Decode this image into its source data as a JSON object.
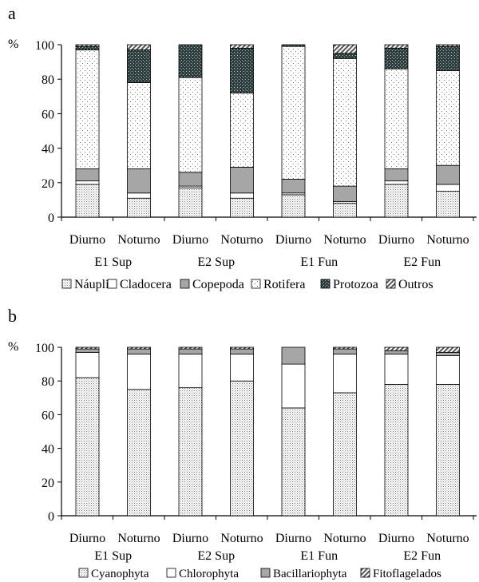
{
  "chart_data": [
    {
      "panel_label": "a",
      "type": "bar",
      "stacked": true,
      "ylabel": "%",
      "ylim": [
        0,
        100
      ],
      "yticks": [
        0,
        20,
        40,
        60,
        80,
        100
      ],
      "tick_labels": [
        "0",
        "20",
        "40",
        "60",
        "80",
        "100"
      ],
      "categories": [
        "Diurno",
        "Noturno",
        "Diurno",
        "Noturno",
        "Diurno",
        "Noturno",
        "Diurno",
        "Noturno"
      ],
      "groups": [
        "E1 Sup",
        "E2 Sup",
        "E1 Fun",
        "E2 Fun"
      ],
      "legend_position": "bottom",
      "series": [
        {
          "name": "Náuplio",
          "pattern": "dots-fine",
          "values": [
            19,
            11,
            17,
            11,
            13,
            8,
            19,
            15
          ]
        },
        {
          "name": "Cladocera",
          "pattern": "white",
          "values": [
            2,
            3,
            1,
            3,
            1,
            1,
            2,
            4
          ]
        },
        {
          "name": "Copepoda",
          "pattern": "gray",
          "values": [
            7,
            14,
            8,
            15,
            8,
            9,
            7,
            11
          ]
        },
        {
          "name": "Rotifera",
          "pattern": "dots-sparse",
          "values": [
            69,
            50,
            55,
            43,
            77,
            74,
            58,
            55
          ]
        },
        {
          "name": "Protozoa",
          "pattern": "dark",
          "values": [
            2,
            19,
            19,
            26,
            1,
            3,
            12,
            14
          ]
        },
        {
          "name": "Outros",
          "pattern": "hatch",
          "values": [
            1,
            3,
            0,
            2,
            0,
            5,
            2,
            1
          ]
        }
      ]
    },
    {
      "panel_label": "b",
      "type": "bar",
      "stacked": true,
      "ylabel": "%",
      "ylim": [
        0,
        100
      ],
      "yticks": [
        0,
        20,
        40,
        60,
        80,
        100
      ],
      "tick_labels": [
        "0",
        "20",
        "40",
        "60",
        "80",
        "100"
      ],
      "categories": [
        "Diurno",
        "Noturno",
        "Diurno",
        "Noturno",
        "Diurno",
        "Noturno",
        "Diurno",
        "Noturno"
      ],
      "groups": [
        "E1 Sup",
        "E2 Sup",
        "E1 Fun",
        "E2 Fun"
      ],
      "legend_position": "bottom",
      "series": [
        {
          "name": "Cyanophyta",
          "pattern": "dots-fine",
          "values": [
            82,
            75,
            76,
            80,
            64,
            73,
            78,
            78
          ]
        },
        {
          "name": "Chlorophyta",
          "pattern": "white",
          "values": [
            15,
            21,
            20,
            16,
            26,
            23,
            18,
            17
          ]
        },
        {
          "name": "Bacillariophyta",
          "pattern": "gray",
          "values": [
            2,
            3,
            3,
            3,
            10,
            3,
            2,
            2
          ]
        },
        {
          "name": "Fitoflagelados",
          "pattern": "hatch",
          "values": [
            1,
            1,
            1,
            1,
            0,
            1,
            2,
            3
          ]
        }
      ]
    }
  ]
}
